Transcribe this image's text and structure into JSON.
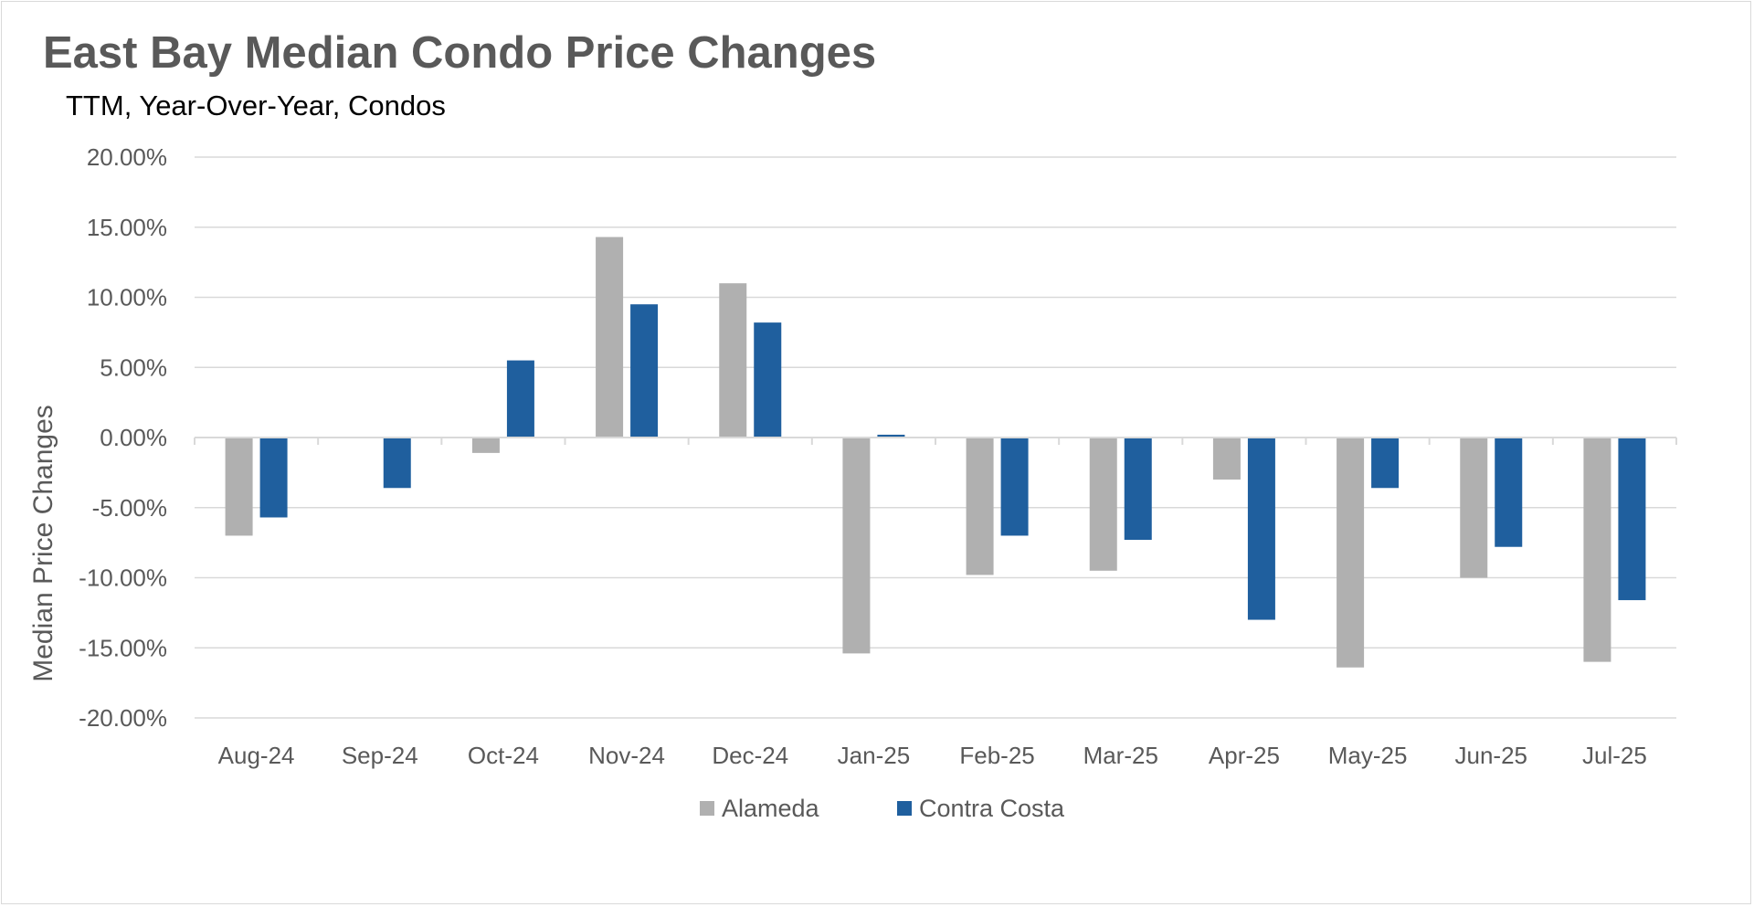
{
  "chart_data": {
    "type": "bar",
    "title": "East Bay Median Condo Price Changes",
    "subtitle": "TTM, Year-Over-Year,  Condos",
    "ylabel": "Median Price Changes",
    "xlabel": "",
    "categories": [
      "Aug-24",
      "Sep-24",
      "Oct-24",
      "Nov-24",
      "Dec-24",
      "Jan-25",
      "Feb-25",
      "Mar-25",
      "Apr-25",
      "May-25",
      "Jun-25",
      "Jul-25"
    ],
    "series": [
      {
        "name": "Alameda",
        "color": "#b0b0b0",
        "values": [
          -7.0,
          0.0,
          -1.1,
          14.3,
          11.0,
          -15.4,
          -9.8,
          -9.5,
          -3.0,
          -16.4,
          -10.0,
          -16.0
        ]
      },
      {
        "name": "Contra Costa",
        "color": "#1f5f9e",
        "values": [
          -5.7,
          -3.6,
          5.5,
          9.5,
          8.2,
          0.2,
          -7.0,
          -7.3,
          -13.0,
          -3.6,
          -7.8,
          -11.6
        ]
      }
    ],
    "ylim": [
      -20,
      20
    ],
    "yticks": [
      20,
      15,
      10,
      5,
      0,
      -5,
      -10,
      -15,
      -20
    ],
    "ytick_labels": [
      "20.00%",
      "15.00%",
      "10.00%",
      "5.00%",
      "0.00%",
      "-5.00%",
      "-10.00%",
      "-15.00%",
      "-20.00%"
    ],
    "grid": true,
    "legend_position": "bottom"
  }
}
